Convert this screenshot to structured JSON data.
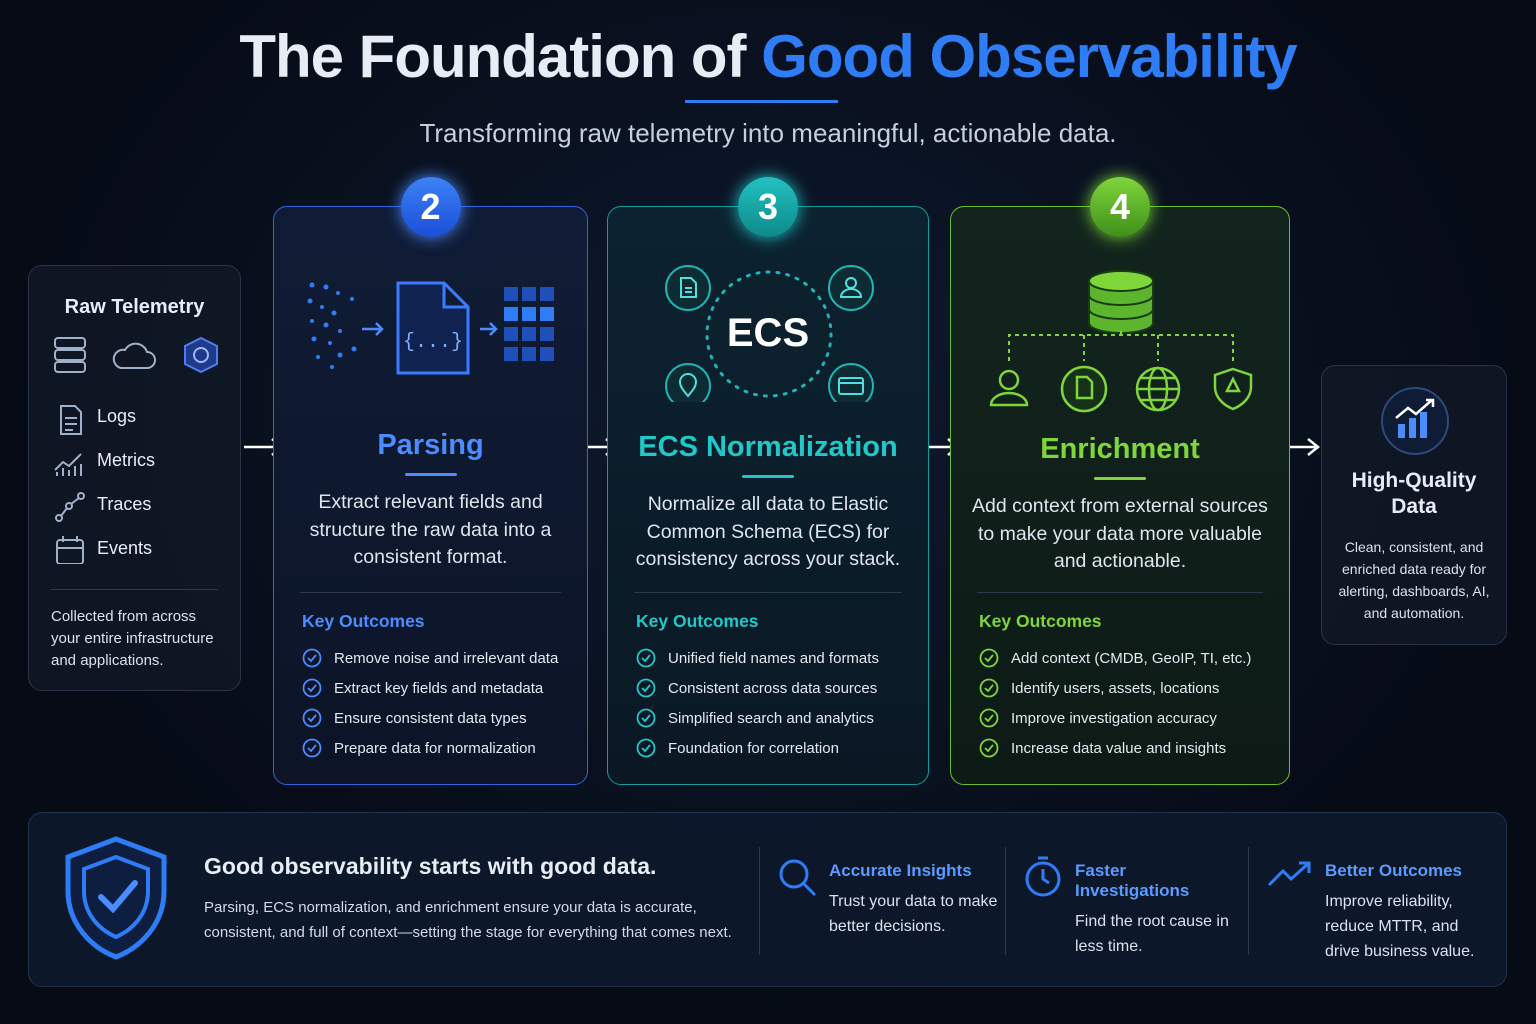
{
  "title": {
    "lead": "The Foundation of",
    "highlight": "Good Observability"
  },
  "subtitle": "Transforming raw telemetry into meaningful, actionable data.",
  "raw_telemetry": {
    "title": "Raw Telemetry",
    "items": [
      "Logs",
      "Metrics",
      "Traces",
      "Events"
    ],
    "note": "Collected from across your entire infrastructure and applications."
  },
  "steps": [
    {
      "number": "2",
      "title": "Parsing",
      "description": "Extract relevant fields and structure the raw data into a consistent format.",
      "outcomes_heading": "Key Outcomes",
      "outcomes": [
        "Remove noise and irrelevant data",
        "Extract key fields and metadata",
        "Ensure consistent data types",
        "Prepare data for normalization"
      ]
    },
    {
      "number": "3",
      "title": "ECS Normalization",
      "icon_label": "ECS",
      "description": "Normalize all data to Elastic Common Schema (ECS) for consistency across your stack.",
      "outcomes_heading": "Key Outcomes",
      "outcomes": [
        "Unified field names and formats",
        "Consistent across data sources",
        "Simplified search and analytics",
        "Foundation for correlation"
      ]
    },
    {
      "number": "4",
      "title": "Enrichment",
      "description": "Add context from external sources to make your data more valuable and actionable.",
      "outcomes_heading": "Key Outcomes",
      "outcomes": [
        "Add context (CMDB, GeoIP, TI, etc.)",
        "Identify users, assets, locations",
        "Improve investigation accuracy",
        "Increase data value and insights"
      ]
    }
  ],
  "output": {
    "title": "High-Quality Data",
    "description": "Clean, consistent, and enriched data ready for alerting, dashboards, AI, and automation."
  },
  "footer": {
    "heading": "Good observability starts with good data.",
    "text": "Parsing, ECS normalization, and enrichment ensure your data is accurate, consistent, and full of context—setting the stage for everything that comes next.",
    "features": [
      {
        "title": "Accurate Insights",
        "text": "Trust your data to make better decisions."
      },
      {
        "title": "Faster Investigations",
        "text": "Find the root cause in less time."
      },
      {
        "title": "Better Outcomes",
        "text": "Improve reliability, reduce MTTR, and drive business value."
      }
    ]
  }
}
